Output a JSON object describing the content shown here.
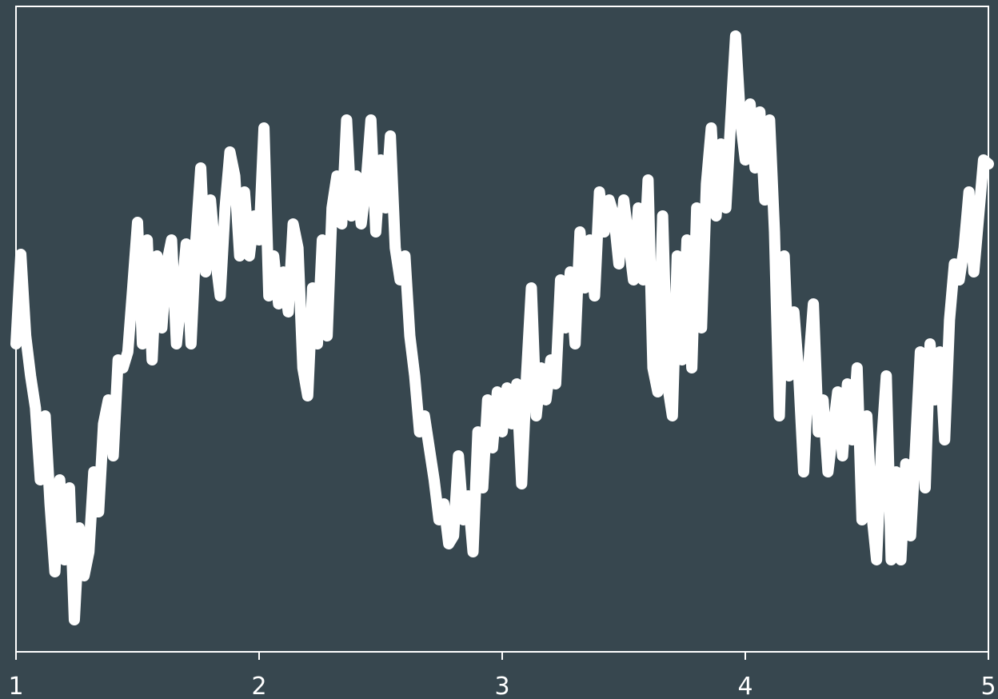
{
  "chart_data": {
    "type": "line",
    "color": "#ffffff",
    "background": "#37474f",
    "x": [
      1,
      1.02,
      1.04,
      1.06,
      1.08,
      1.1,
      1.12,
      1.14,
      1.16,
      1.18,
      1.2,
      1.22,
      1.24,
      1.26,
      1.28,
      1.3,
      1.32,
      1.34,
      1.36,
      1.38,
      1.4,
      1.42,
      1.44,
      1.46,
      1.48,
      1.5,
      1.52,
      1.54,
      1.56,
      1.58,
      1.6,
      1.62,
      1.64,
      1.66,
      1.68,
      1.7,
      1.72,
      1.74,
      1.76,
      1.78,
      1.8,
      1.82,
      1.84,
      1.86,
      1.88,
      1.9,
      1.92,
      1.94,
      1.96,
      1.98,
      2,
      2.02,
      2.04,
      2.06,
      2.08,
      2.1,
      2.12,
      2.14,
      2.16,
      2.18,
      2.2,
      2.22,
      2.24,
      2.26,
      2.28,
      2.3,
      2.32,
      2.34,
      2.36,
      2.38,
      2.4,
      2.42,
      2.44,
      2.46,
      2.48,
      2.5,
      2.52,
      2.54,
      2.56,
      2.58,
      2.6,
      2.62,
      2.64,
      2.66,
      2.68,
      2.7,
      2.72,
      2.74,
      2.76,
      2.78,
      2.8,
      2.82,
      2.84,
      2.86,
      2.88,
      2.9,
      2.92,
      2.94,
      2.96,
      2.98,
      3,
      3.02,
      3.04,
      3.06,
      3.08,
      3.1,
      3.12,
      3.14,
      3.16,
      3.18,
      3.2,
      3.22,
      3.24,
      3.26,
      3.28,
      3.3,
      3.32,
      3.34,
      3.36,
      3.38,
      3.4,
      3.42,
      3.44,
      3.46,
      3.48,
      3.5,
      3.52,
      3.54,
      3.56,
      3.58,
      3.6,
      3.62,
      3.64,
      3.66,
      3.68,
      3.7,
      3.72,
      3.74,
      3.76,
      3.78,
      3.8,
      3.82,
      3.84,
      3.86,
      3.88,
      3.9,
      3.92,
      3.94,
      3.96,
      3.98,
      4,
      4.02,
      4.04,
      4.06,
      4.08,
      4.1,
      4.12,
      4.14,
      4.16,
      4.18,
      4.2,
      4.22,
      4.24,
      4.26,
      4.28,
      4.3,
      4.32,
      4.34,
      4.36,
      4.38,
      4.4,
      4.42,
      4.44,
      4.46,
      4.48,
      4.5,
      4.52,
      4.54,
      4.56,
      4.58,
      4.6,
      4.62,
      4.64,
      4.66,
      4.68,
      4.7,
      4.72,
      4.74,
      4.76,
      4.78,
      4.8,
      4.82,
      4.84,
      4.86,
      4.88,
      4.9,
      4.92,
      4.94,
      4.96,
      4.98,
      5
    ],
    "values": [
      385,
      497,
      395,
      345,
      305,
      215,
      295,
      185,
      100,
      215,
      115,
      205,
      40,
      155,
      95,
      125,
      225,
      175,
      285,
      315,
      245,
      365,
      355,
      375,
      455,
      537,
      385,
      515,
      365,
      495,
      405,
      485,
      515,
      385,
      445,
      510,
      385,
      515,
      605,
      475,
      565,
      495,
      445,
      555,
      625,
      595,
      495,
      575,
      495,
      545,
      515,
      655,
      445,
      495,
      435,
      475,
      425,
      535,
      505,
      355,
      320,
      455,
      385,
      515,
      395,
      555,
      595,
      535,
      665,
      545,
      595,
      535,
      585,
      665,
      525,
      615,
      555,
      645,
      505,
      465,
      495,
      395,
      345,
      275,
      295,
      255,
      215,
      165,
      185,
      135,
      145,
      245,
      165,
      195,
      125,
      275,
      205,
      315,
      255,
      325,
      275,
      330,
      285,
      335,
      210,
      345,
      455,
      295,
      355,
      315,
      365,
      335,
      465,
      405,
      475,
      385,
      525,
      455,
      515,
      445,
      575,
      525,
      565,
      545,
      485,
      565,
      515,
      465,
      555,
      465,
      590,
      355,
      325,
      545,
      335,
      295,
      495,
      365,
      515,
      355,
      555,
      405,
      585,
      655,
      545,
      635,
      555,
      665,
      770,
      665,
      615,
      685,
      605,
      675,
      565,
      665,
      525,
      295,
      495,
      345,
      425,
      345,
      225,
      355,
      435,
      275,
      315,
      225,
      275,
      325,
      245,
      335,
      265,
      355,
      165,
      295,
      175,
      115,
      255,
      345,
      115,
      225,
      115,
      235,
      145,
      255,
      375,
      205,
      385,
      315,
      375,
      265,
      415,
      485,
      465,
      505,
      575,
      475,
      545,
      615,
      610
    ],
    "xlim": [
      1,
      5
    ],
    "xticks": [
      1,
      2,
      3,
      4,
      5
    ],
    "ylim": [
      0,
      807
    ]
  }
}
